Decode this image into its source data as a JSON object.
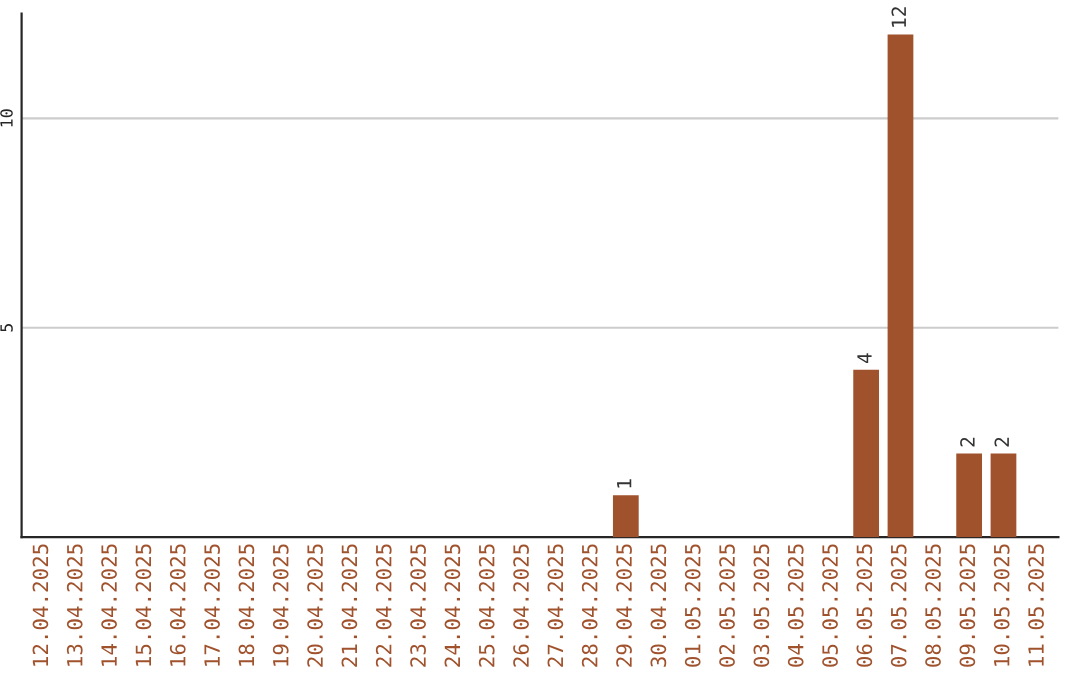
{
  "chart_data": {
    "type": "bar",
    "categories": [
      "12.04.2025",
      "13.04.2025",
      "14.04.2025",
      "15.04.2025",
      "16.04.2025",
      "17.04.2025",
      "18.04.2025",
      "19.04.2025",
      "20.04.2025",
      "21.04.2025",
      "22.04.2025",
      "23.04.2025",
      "24.04.2025",
      "25.04.2025",
      "26.04.2025",
      "27.04.2025",
      "28.04.2025",
      "29.04.2025",
      "30.04.2025",
      "01.05.2025",
      "02.05.2025",
      "03.05.2025",
      "04.05.2025",
      "05.05.2025",
      "06.05.2025",
      "07.05.2025",
      "08.05.2025",
      "09.05.2025",
      "10.05.2025",
      "11.05.2025"
    ],
    "values": [
      0,
      0,
      0,
      0,
      0,
      0,
      0,
      0,
      0,
      0,
      0,
      0,
      0,
      0,
      0,
      0,
      0,
      1,
      0,
      0,
      0,
      0,
      0,
      0,
      4,
      12,
      0,
      2,
      2,
      0
    ],
    "value_labels": [
      null,
      null,
      null,
      null,
      null,
      null,
      null,
      null,
      null,
      null,
      null,
      null,
      null,
      null,
      null,
      null,
      null,
      "1",
      null,
      null,
      null,
      null,
      null,
      null,
      "4",
      "12",
      null,
      "2",
      "2",
      null
    ],
    "color": "#a0522d",
    "ylim": [
      0,
      12.5
    ],
    "yticks": [
      5,
      10
    ],
    "grid": "y"
  }
}
